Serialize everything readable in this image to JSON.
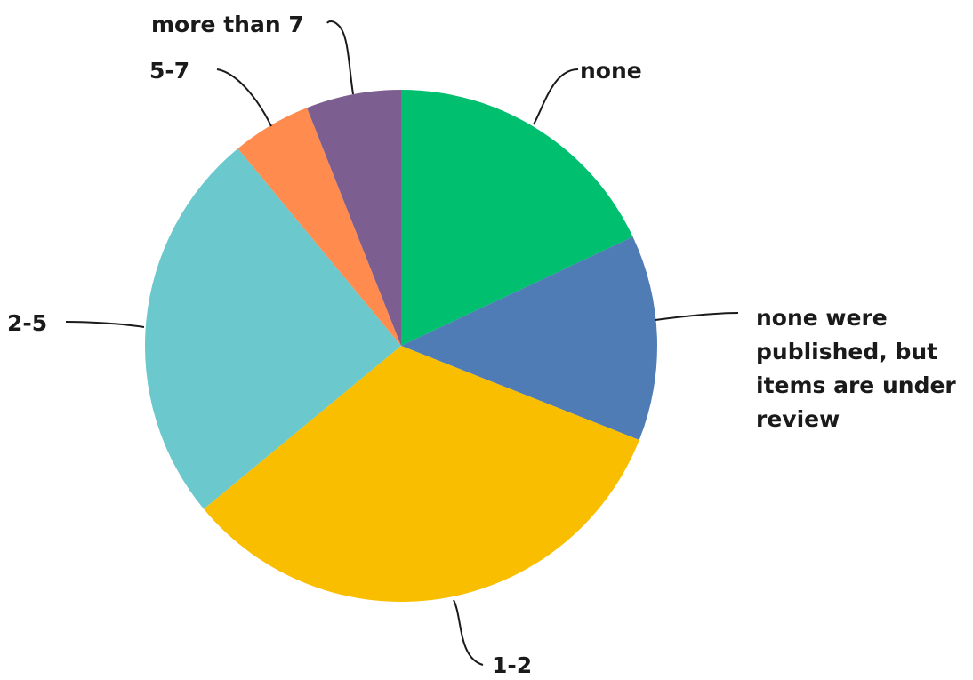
{
  "chart_data": {
    "type": "pie",
    "title": "",
    "start_angle_deg": 0,
    "direction": "clockwise",
    "slices": [
      {
        "label": "none",
        "value": 18,
        "color": "#00bf6f"
      },
      {
        "label": "none were published, but items are under review",
        "label_lines": [
          "none were",
          "published, but",
          "items are under",
          "review"
        ],
        "value": 13,
        "color": "#507cb6"
      },
      {
        "label": "1-2",
        "value": 33,
        "color": "#f9be00"
      },
      {
        "label": "2-5",
        "value": 25,
        "color": "#6bc8cd"
      },
      {
        "label": "5-7",
        "value": 5,
        "color": "#ff8b4f"
      },
      {
        "label": "more than 7",
        "value": 6,
        "color": "#7d5e90"
      }
    ]
  }
}
